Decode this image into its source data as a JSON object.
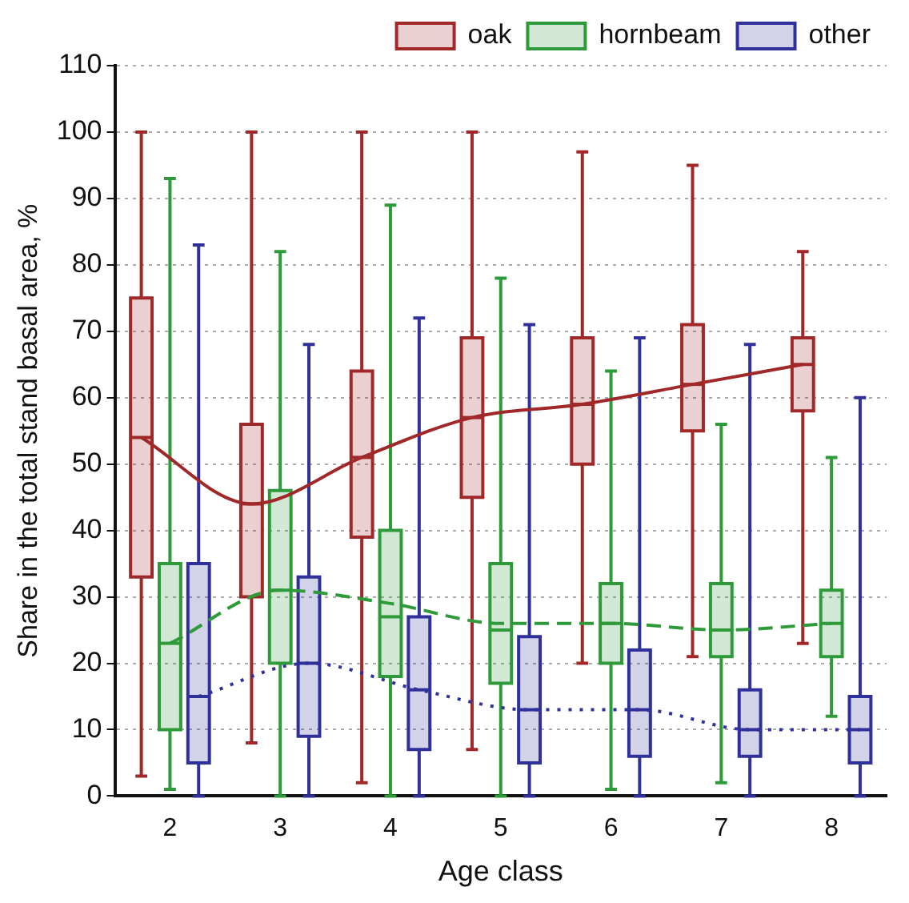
{
  "chart_data": {
    "type": "box",
    "xlabel": "Age class",
    "ylabel": "Share in the total stand basal area, %",
    "categories": [
      "2",
      "3",
      "4",
      "5",
      "6",
      "7",
      "8"
    ],
    "ylim": [
      0,
      110
    ],
    "yticks": [
      0,
      10,
      20,
      30,
      40,
      50,
      60,
      70,
      80,
      90,
      100,
      110
    ],
    "grid": "y",
    "legend": "top right",
    "marker": "none",
    "series": [
      {
        "name": "oak",
        "color": "#a02828",
        "boxes": [
          {
            "low": 3,
            "q1": 33,
            "median": 54,
            "q3": 75,
            "high": 100
          },
          {
            "low": 8,
            "q1": 30,
            "median": 44,
            "q3": 56,
            "high": 100
          },
          {
            "low": 2,
            "q1": 39,
            "median": 51,
            "q3": 64,
            "high": 100
          },
          {
            "low": 7,
            "q1": 45,
            "median": 57,
            "q3": 69,
            "high": 100
          },
          {
            "low": 20,
            "q1": 50,
            "median": 59,
            "q3": 69,
            "high": 97
          },
          {
            "low": 21,
            "q1": 55,
            "median": 62,
            "q3": 71,
            "high": 95
          },
          {
            "low": 23,
            "q1": 58,
            "median": 65,
            "q3": 69,
            "high": 82
          }
        ]
      },
      {
        "name": "hornbeam",
        "color": "#2e9a3a",
        "boxes": [
          {
            "low": 1,
            "q1": 10,
            "median": 23,
            "q3": 35,
            "high": 93
          },
          {
            "low": 0,
            "q1": 20,
            "median": 31,
            "q3": 46,
            "high": 82
          },
          {
            "low": 0,
            "q1": 18,
            "median": 27,
            "q3": 40,
            "high": 89
          },
          {
            "low": 0,
            "q1": 17,
            "median": 25,
            "q3": 35,
            "high": 78
          },
          {
            "low": 1,
            "q1": 20,
            "median": 26,
            "q3": 32,
            "high": 64
          },
          {
            "low": 2,
            "q1": 21,
            "median": 25,
            "q3": 32,
            "high": 56
          },
          {
            "low": 12,
            "q1": 21,
            "median": 26,
            "q3": 31,
            "high": 51
          }
        ]
      },
      {
        "name": "other",
        "color": "#30309a",
        "boxes": [
          {
            "low": 0,
            "q1": 5,
            "median": 15,
            "q3": 35,
            "high": 83
          },
          {
            "low": 0,
            "q1": 9,
            "median": 20,
            "q3": 33,
            "high": 68
          },
          {
            "low": 0,
            "q1": 7,
            "median": 16,
            "q3": 27,
            "high": 72
          },
          {
            "low": 0,
            "q1": 5,
            "median": 13,
            "q3": 24,
            "high": 71
          },
          {
            "low": 0,
            "q1": 6,
            "median": 13,
            "q3": 22,
            "high": 69
          },
          {
            "low": 0,
            "q1": 6,
            "median": 10,
            "q3": 16,
            "high": 68
          },
          {
            "low": 0,
            "q1": 5,
            "median": 10,
            "q3": 15,
            "high": 60
          }
        ]
      },
      {
        "type": "line",
        "color": "#a02828",
        "line_style": "solid",
        "values": [
          54,
          44,
          51,
          57,
          59,
          62,
          65
        ]
      },
      {
        "type": "line",
        "color": "#2e9a3a",
        "line_style": "dashed",
        "values": [
          23,
          31,
          29,
          26,
          26,
          25,
          26
        ]
      },
      {
        "type": "line",
        "color": "#30309a",
        "line_style": "dotted",
        "values": [
          15,
          20,
          16,
          13,
          13,
          10,
          10
        ]
      }
    ]
  }
}
